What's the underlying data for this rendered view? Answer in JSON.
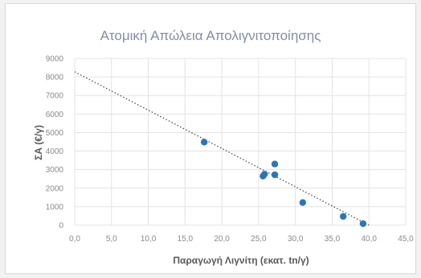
{
  "chart_data": {
    "type": "scatter",
    "title": "Ατομική Απώλεια Απολιγνιτοποίησης",
    "xlabel": "Παραγωγή Λιγνίτη (εκατ. tn/γ)",
    "ylabel": "ΣΑ (€/γ)",
    "xlim": [
      0,
      45
    ],
    "ylim": [
      0,
      9000
    ],
    "x_ticks": [
      "0,0",
      "5,0",
      "10,0",
      "15,0",
      "20,0",
      "25,0",
      "30,0",
      "35,0",
      "40,0",
      "45,0"
    ],
    "y_ticks": [
      "0",
      "1000",
      "2000",
      "3000",
      "4000",
      "5000",
      "6000",
      "7000",
      "8000",
      "9000"
    ],
    "grid": true,
    "points": [
      {
        "x": 17.6,
        "y": 4480
      },
      {
        "x": 25.6,
        "y": 2650
      },
      {
        "x": 25.8,
        "y": 2750
      },
      {
        "x": 27.2,
        "y": 3300
      },
      {
        "x": 27.2,
        "y": 2720
      },
      {
        "x": 31.0,
        "y": 1220
      },
      {
        "x": 36.5,
        "y": 470
      },
      {
        "x": 39.2,
        "y": 80
      }
    ],
    "trendline": {
      "type": "linear",
      "x": [
        0,
        40.0
      ],
      "y": [
        8280,
        0
      ]
    },
    "colors": {
      "points": "#2e75b6",
      "trendline": "#404040",
      "grid": "#e3e3e3"
    }
  }
}
